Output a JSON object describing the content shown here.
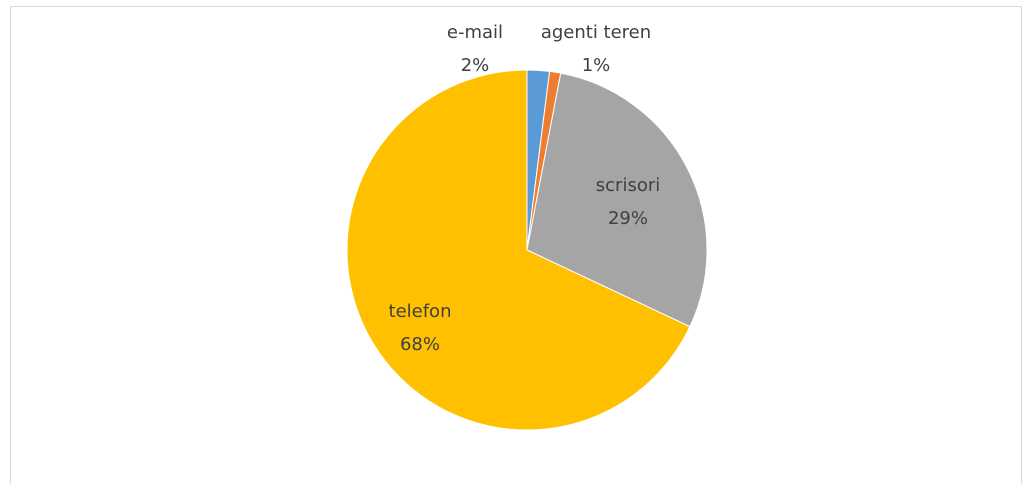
{
  "chart_data": {
    "type": "pie",
    "categories": [
      "e-mail",
      "agenti teren",
      "scrisori",
      "telefon"
    ],
    "values": [
      2,
      1,
      29,
      68
    ],
    "value_labels": [
      "2%",
      "1%",
      "29%",
      "68%"
    ],
    "colors": [
      "#5b9bd5",
      "#ed7d31",
      "#a5a5a5",
      "#ffc000"
    ]
  }
}
